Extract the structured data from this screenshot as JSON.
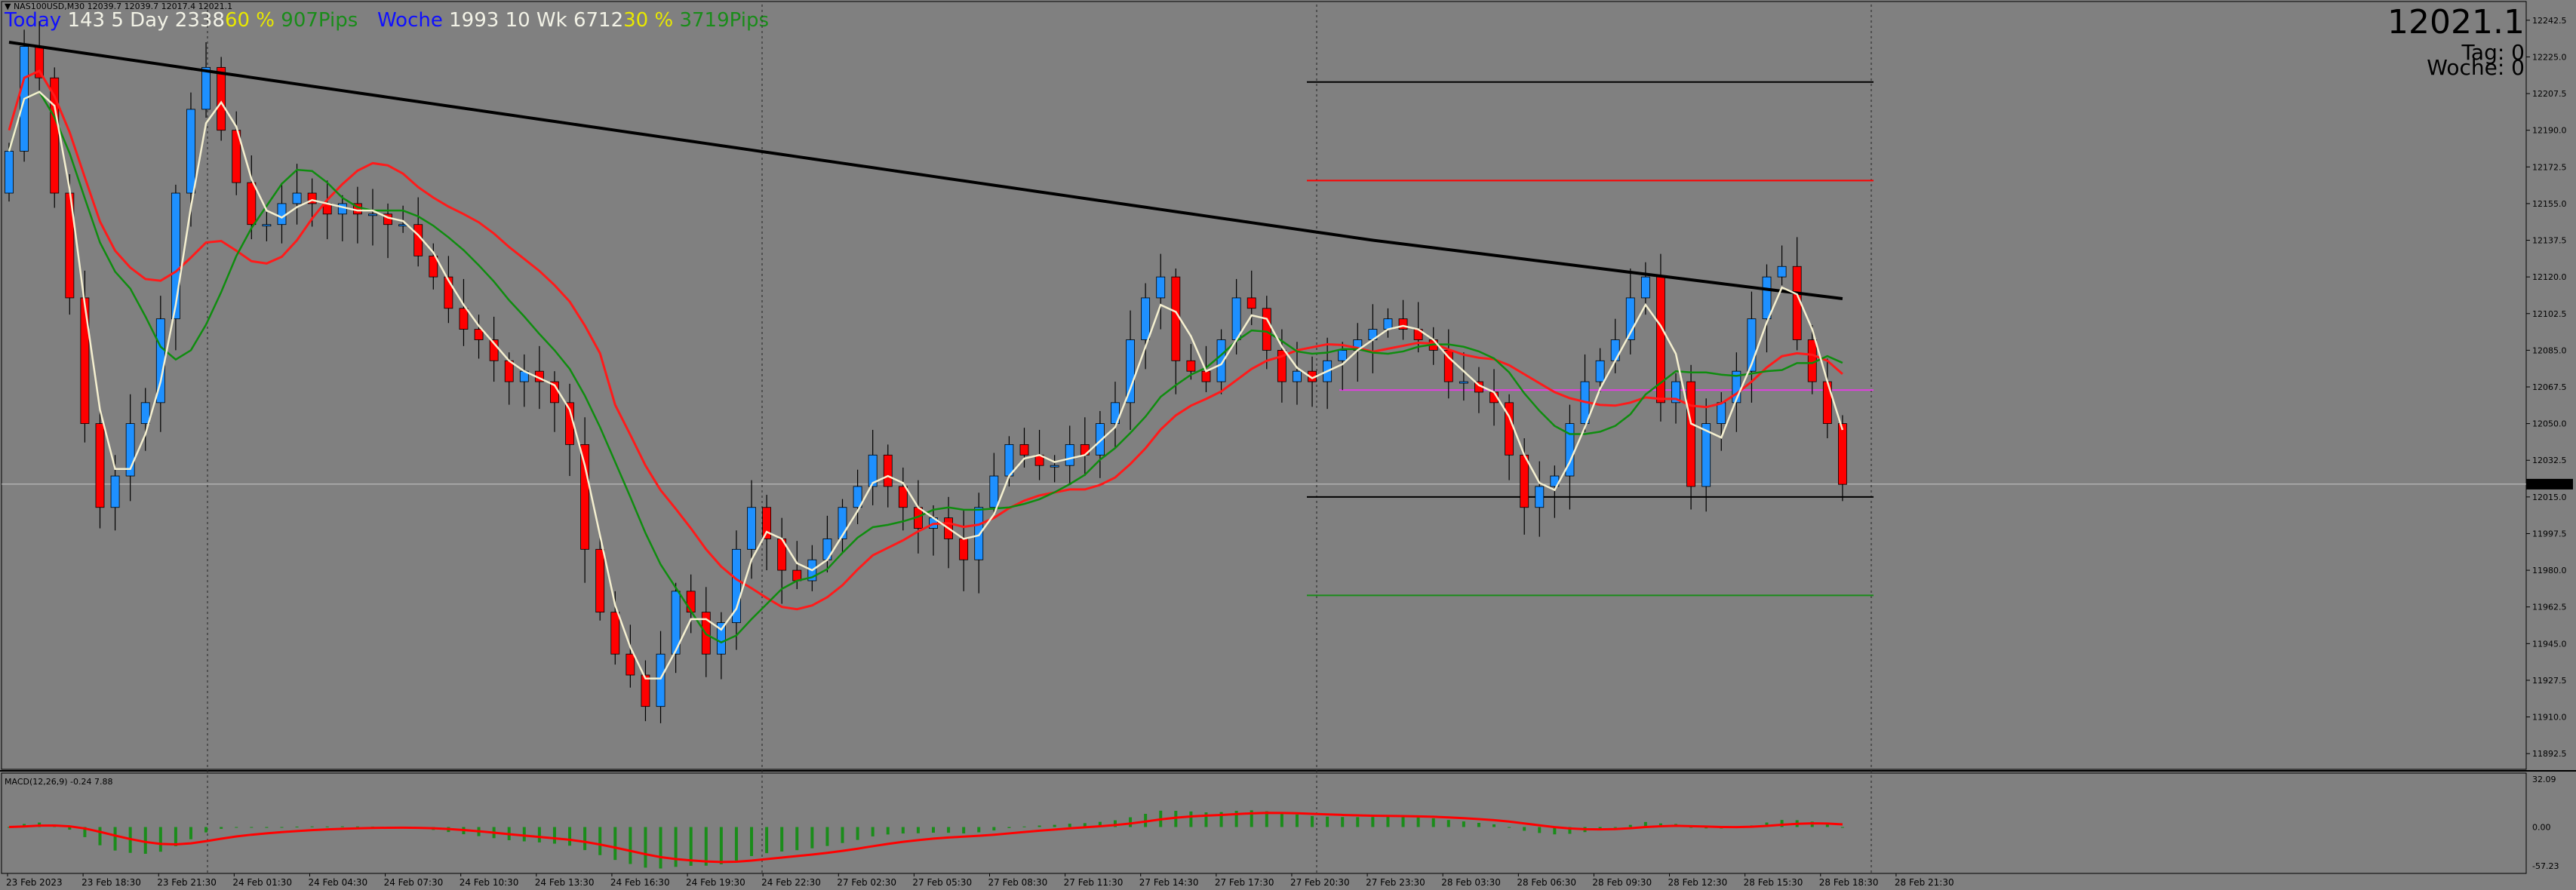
{
  "symbol_info": "▼ NAS100USD,M30  12039.7 12039.7 12017.4 12021.1",
  "hud": {
    "today_label": "Today",
    "today_values": "143 5 Day",
    "today_v2": "2338",
    "today_v3": "60 %",
    "today_v4": "907",
    "today_unit": "Pips",
    "woche_label": "Woche",
    "woche_v1": "1993 10 Wk",
    "woche_v2": "6712",
    "woche_v3": "30 %",
    "woche_v4": "3719",
    "woche_unit": "Pips"
  },
  "price_panel": {
    "price": "12021.1",
    "tag": "Tag:  0",
    "woche": "Woche:  0"
  },
  "macd_label": "MACD(12,26,9) -0.24 7.88",
  "colors": {
    "background": "#808080",
    "bull": "#1e90ff",
    "bear": "#ff0000",
    "ma_fast": "#f5f0d0",
    "ma_mid": "#0f8c0f",
    "ma_slow": "#ff1a1a",
    "ma_long": "#000000",
    "magenta_level": "#e040e0",
    "macd_hist": "#1a8c1a",
    "macd_signal": "#ff0000"
  },
  "chart_data": {
    "type": "candlestick",
    "y_ticks": [
      "12242.5",
      "12225.0",
      "12207.5",
      "12190.0",
      "12172.5",
      "12155.0",
      "12137.5",
      "12120.0",
      "12102.5",
      "12085.0",
      "12067.5",
      "12050.0",
      "12032.5",
      "12015.0",
      "11997.5",
      "11980.0",
      "11962.5",
      "11945.0",
      "11927.5",
      "11910.0",
      "11892.5"
    ],
    "ylim": [
      11885,
      12250
    ],
    "x_ticks": [
      "23 Feb 2023",
      "23 Feb 18:30",
      "23 Feb 21:30",
      "24 Feb 01:30",
      "24 Feb 04:30",
      "24 Feb 07:30",
      "24 Feb 10:30",
      "24 Feb 13:30",
      "24 Feb 16:30",
      "24 Feb 19:30",
      "24 Feb 22:30",
      "27 Feb 02:30",
      "27 Feb 05:30",
      "27 Feb 08:30",
      "27 Feb 11:30",
      "27 Feb 14:30",
      "27 Feb 17:30",
      "27 Feb 20:30",
      "27 Feb 23:30",
      "28 Feb 03:30",
      "28 Feb 06:30",
      "28 Feb 09:30",
      "28 Feb 12:30",
      "28 Feb 15:30",
      "28 Feb 18:30",
      "28 Feb 21:30"
    ],
    "current_price_tag": "12021.1",
    "current_price": 12021.1,
    "closes": [
      12180,
      12230,
      12215,
      12160,
      12110,
      12050,
      12010,
      12025,
      12050,
      12060,
      12100,
      12160,
      12200,
      12220,
      12190,
      12165,
      12145,
      12145,
      12155,
      12160,
      12155,
      12150,
      12155,
      12150,
      12150,
      12145,
      12145,
      12130,
      12120,
      12105,
      12095,
      12090,
      12080,
      12070,
      12075,
      12070,
      12060,
      12040,
      11990,
      11960,
      11940,
      11930,
      11915,
      11940,
      11970,
      11960,
      11940,
      11955,
      11990,
      12010,
      11995,
      11980,
      11975,
      11985,
      11995,
      12010,
      12020,
      12035,
      12020,
      12010,
      12000,
      12005,
      11995,
      11985,
      12010,
      12025,
      12040,
      12035,
      12030,
      12030,
      12040,
      12035,
      12050,
      12060,
      12090,
      12110,
      12120,
      12080,
      12075,
      12070,
      12090,
      12110,
      12105,
      12085,
      12070,
      12075,
      12070,
      12080,
      12085,
      12090,
      12095,
      12100,
      12095,
      12090,
      12085,
      12070,
      12070,
      12065,
      12060,
      12035,
      12010,
      12020,
      12025,
      12050,
      12070,
      12080,
      12090,
      12110,
      12120,
      12060,
      12070,
      12020,
      12050,
      12060,
      12075,
      12100,
      12120,
      12125,
      12090,
      12070,
      12050,
      12021
    ]
  }
}
